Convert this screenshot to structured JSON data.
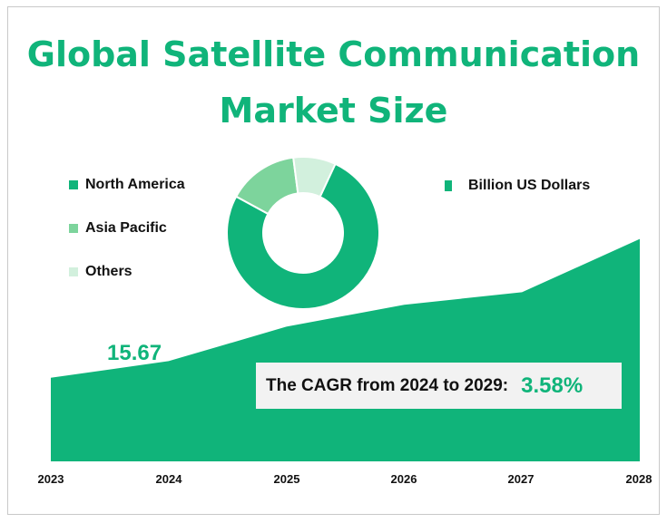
{
  "title_line1": "Global Satellite Communication",
  "title_line2": "Market Size",
  "colors": {
    "accent": "#10b47a",
    "north_america": "#10b47a",
    "asia_pacific": "#7dd49c",
    "others": "#d2f0dd"
  },
  "donut_legend": [
    "North America",
    "Asia Pacific",
    "Others"
  ],
  "area_legend": "Billion US Dollars",
  "first_value_label": "15.67",
  "cagr": {
    "label": "The CAGR from 2024 to 2029:",
    "value": "3.58%"
  },
  "chart_data": [
    {
      "type": "area",
      "x": [
        "2023",
        "2024",
        "2025",
        "2026",
        "2027",
        "2028"
      ],
      "series": [
        {
          "name": "Billion US Dollars",
          "values": [
            15.67,
            16.2,
            17.3,
            18.0,
            18.4,
            20.1
          ]
        }
      ],
      "ylim": [
        13,
        22
      ],
      "data_labels": [
        "15.67"
      ]
    },
    {
      "type": "pie",
      "categories": [
        "North America",
        "Asia Pacific",
        "Others"
      ],
      "values": [
        76,
        15,
        9
      ]
    }
  ]
}
